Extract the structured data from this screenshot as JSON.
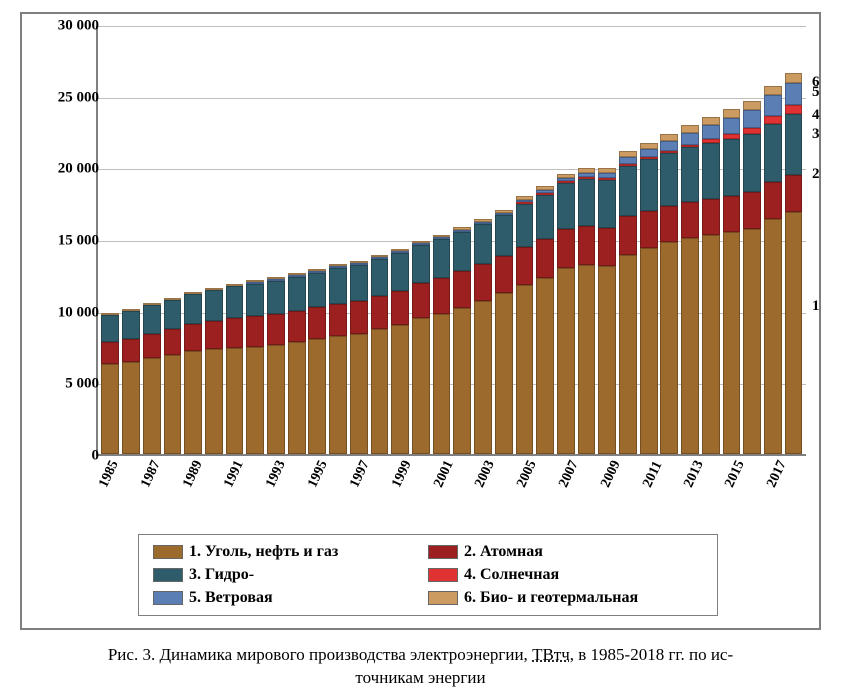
{
  "chart": {
    "type": "stacked-bar",
    "ylim": [
      0,
      30000
    ],
    "ytick_step": 5000,
    "yticks": [
      "0",
      "5 000",
      "10 000",
      "15 000",
      "20 000",
      "25 000",
      "30 000"
    ],
    "xlabels_visible": [
      "1985",
      "1987",
      "1989",
      "1991",
      "1993",
      "1995",
      "1997",
      "1999",
      "2001",
      "2003",
      "2005",
      "2007",
      "2009",
      "2011",
      "2013",
      "2015",
      "2017"
    ],
    "years": [
      1985,
      1986,
      1987,
      1988,
      1989,
      1990,
      1991,
      1992,
      1993,
      1994,
      1995,
      1996,
      1997,
      1998,
      1999,
      2000,
      2001,
      2002,
      2003,
      2004,
      2005,
      2006,
      2007,
      2008,
      2009,
      2010,
      2011,
      2012,
      2013,
      2014,
      2015,
      2016,
      2017,
      2018
    ],
    "series": [
      {
        "id": "fossil",
        "label": "1. Уголь, нефть и газ",
        "color": "#9c6a2c",
        "legend_swatch": "#9c6a2c"
      },
      {
        "id": "nuclear",
        "label": "2. Атомная",
        "color": "#9c2020",
        "legend_swatch": "#9c2020"
      },
      {
        "id": "hydro",
        "label": "3. Гидро-",
        "color": "#2f5c6a",
        "legend_swatch": "#2f5c6a"
      },
      {
        "id": "solar",
        "label": "4. Солнечная",
        "color": "#e03232",
        "legend_swatch": "#e03232"
      },
      {
        "id": "wind",
        "label": "5. Ветровая",
        "color": "#5b7fb4",
        "legend_swatch": "#5b7fb4"
      },
      {
        "id": "biogeo",
        "label": "6. Био- и геотермальная",
        "color": "#cc9b61",
        "legend_swatch": "#cc9b61"
      }
    ],
    "data": {
      "fossil": [
        6300,
        6400,
        6700,
        6900,
        7200,
        7300,
        7400,
        7500,
        7600,
        7800,
        8000,
        8200,
        8400,
        8700,
        9000,
        9500,
        9800,
        10200,
        10700,
        11200,
        11800,
        12300,
        13000,
        13200,
        13100,
        13900,
        14400,
        14800,
        15100,
        15300,
        15500,
        15700,
        16400,
        16900
      ],
      "nuclear": [
        1500,
        1600,
        1700,
        1800,
        1900,
        2000,
        2100,
        2100,
        2150,
        2200,
        2250,
        2300,
        2300,
        2350,
        2400,
        2450,
        2500,
        2550,
        2550,
        2600,
        2650,
        2700,
        2700,
        2700,
        2650,
        2700,
        2550,
        2500,
        2500,
        2500,
        2500,
        2550,
        2550,
        2600
      ],
      "hydro": [
        1900,
        1950,
        2000,
        2050,
        2100,
        2150,
        2200,
        2250,
        2300,
        2350,
        2400,
        2450,
        2500,
        2550,
        2600,
        2650,
        2700,
        2750,
        2800,
        2900,
        3000,
        3100,
        3200,
        3300,
        3350,
        3500,
        3600,
        3700,
        3800,
        3900,
        4000,
        4050,
        4100,
        4200
      ],
      "solar": [
        0,
        0,
        0,
        0,
        0,
        0,
        0,
        0,
        0,
        0,
        0,
        0,
        0,
        0,
        0,
        0,
        0,
        0,
        0,
        0,
        5,
        10,
        15,
        20,
        30,
        50,
        80,
        120,
        180,
        250,
        330,
        420,
        520,
        620
      ],
      "wind": [
        0,
        0,
        0,
        0,
        0,
        0,
        0,
        5,
        5,
        10,
        10,
        15,
        20,
        25,
        30,
        40,
        50,
        65,
        85,
        110,
        140,
        180,
        230,
        300,
        380,
        480,
        600,
        720,
        850,
        1000,
        1150,
        1300,
        1450,
        1600
      ],
      "biogeo": [
        30,
        35,
        40,
        45,
        50,
        55,
        60,
        65,
        70,
        80,
        90,
        100,
        110,
        120,
        130,
        145,
        160,
        175,
        195,
        215,
        240,
        265,
        295,
        325,
        355,
        390,
        425,
        460,
        500,
        540,
        580,
        620,
        660,
        700
      ]
    },
    "end_labels": [
      {
        "text": "6",
        "top_val": 26620
      },
      {
        "text": "5",
        "top_val": 25920
      },
      {
        "text": "4",
        "top_val": 24320
      },
      {
        "text": "3",
        "top_val": 23000
      },
      {
        "text": "2",
        "top_val": 20200
      },
      {
        "text": "1",
        "top_val": 11000
      }
    ],
    "grid_color": "#bfbfbf",
    "axis_color": "#808080",
    "background": "#ffffff",
    "font_family": "Times New Roman",
    "tick_fontsize": 15,
    "xlabel_fontsize": 14,
    "legend_fontsize": 16
  },
  "caption": {
    "line1": "Рис. 3. Динамика мирового производства электроэнергии, ",
    "underlined": "ТВтч",
    "line1_tail": ", в 1985-2018 гг. по ис-",
    "line2": "точникам энергии"
  }
}
